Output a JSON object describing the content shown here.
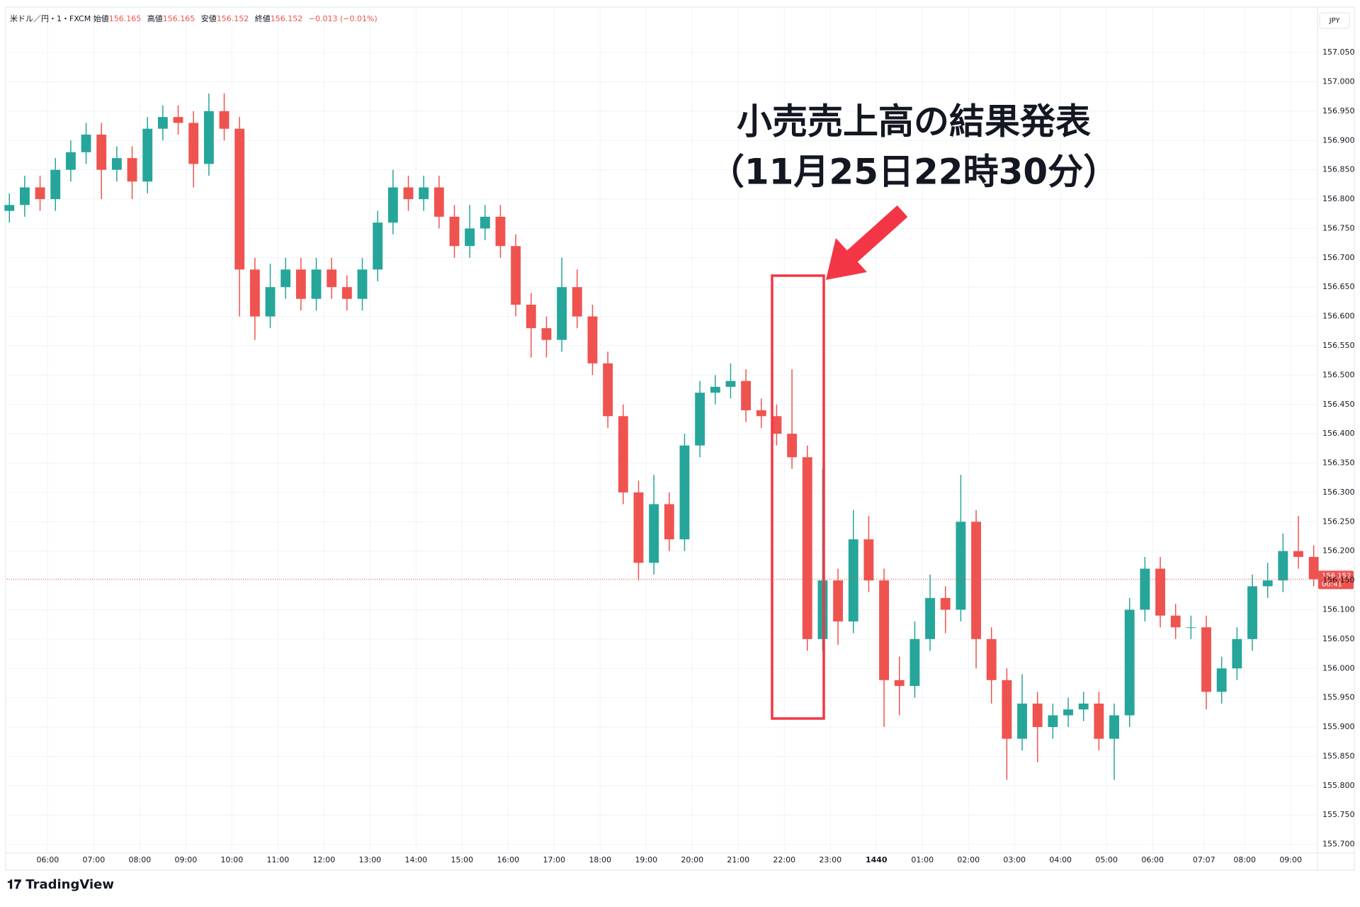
{
  "header": {
    "symbol": "米ドル／円・1・FXCM",
    "open_label": "始値",
    "open": "156.165",
    "high_label": "高値",
    "high": "156.165",
    "low_label": "安値",
    "low": "156.152",
    "close_label": "終値",
    "close": "156.152",
    "change": "−0.013 (−0.01%)"
  },
  "currency": "JPY",
  "countdown": "00:41",
  "logo": "TradingView",
  "chart_data": {
    "type": "candlestick",
    "annotation": [
      "小売売上高の結果発表",
      "（11月25日22時30分）"
    ],
    "up_color": "#26a69a",
    "down_color": "#ef5350",
    "grid": true,
    "xlim": [
      307,
      2014
    ],
    "ylim": [
      157.125,
      155.685
    ],
    "xticks": [
      {
        "value": 360,
        "label": "06:00"
      },
      {
        "value": 420,
        "label": "07:00"
      },
      {
        "value": 480,
        "label": "08:00"
      },
      {
        "value": 540,
        "label": "09:00"
      },
      {
        "value": 600,
        "label": "10:00"
      },
      {
        "value": 660,
        "label": "11:00"
      },
      {
        "value": 720,
        "label": "12:00"
      },
      {
        "value": 780,
        "label": "13:00"
      },
      {
        "value": 840,
        "label": "14:00"
      },
      {
        "value": 900,
        "label": "15:00"
      },
      {
        "value": 960,
        "label": "16:00"
      },
      {
        "value": 1020,
        "label": "17:00"
      },
      {
        "value": 1080,
        "label": "18:00"
      },
      {
        "value": 1140,
        "label": "19:00"
      },
      {
        "value": 1200,
        "label": "20:00"
      },
      {
        "value": 1260,
        "label": "21:00"
      },
      {
        "value": 1320,
        "label": "22:00"
      },
      {
        "value": 1380,
        "label": "23:00"
      },
      1440,
      {
        "value": 1500,
        "label": "01:00"
      },
      {
        "value": 1560,
        "label": "02:00"
      },
      {
        "value": 1620,
        "label": "03:00"
      },
      {
        "value": 1680,
        "label": "04:00"
      },
      {
        "value": 1740,
        "label": "05:00"
      },
      {
        "value": 1800,
        "label": "06:00"
      },
      {
        "value": 1867,
        "label": "07:07"
      },
      {
        "value": 1920,
        "label": "08:00"
      },
      {
        "value": 1980,
        "label": "09:00"
      }
    ],
    "yticks": [
      {
        "value": 155.7,
        "label": "155.700"
      },
      {
        "value": 155.75,
        "label": "155.750"
      },
      {
        "value": 155.8,
        "label": "155.800"
      },
      {
        "value": 155.85,
        "label": "155.850"
      },
      {
        "value": 155.9,
        "label": "155.900"
      },
      {
        "value": 155.95,
        "label": "155.950"
      },
      {
        "value": 156.0,
        "label": "156.000"
      },
      {
        "value": 156.05,
        "label": "156.050"
      },
      {
        "value": 156.1,
        "label": "156.100"
      },
      {
        "value": 156.15,
        "label": "156.150"
      },
      {
        "value": 156.2,
        "label": "156.200"
      },
      {
        "value": 156.25,
        "label": "156.250"
      },
      {
        "value": 156.3,
        "label": "156.300"
      },
      {
        "value": 156.35,
        "label": "156.350"
      },
      {
        "value": 156.4,
        "label": "156.400"
      },
      {
        "value": 156.45,
        "label": "156.450"
      },
      {
        "value": 156.5,
        "label": "156.500"
      },
      {
        "value": 156.55,
        "label": "156.550"
      },
      {
        "value": 156.6,
        "label": "156.600"
      },
      {
        "value": 156.65,
        "label": "156.650"
      },
      {
        "value": 156.7,
        "label": "156.700"
      },
      {
        "value": 156.75,
        "label": "156.750"
      },
      {
        "value": 156.8,
        "label": "156.800"
      },
      {
        "value": 156.85,
        "label": "156.850"
      },
      {
        "value": 156.9,
        "label": "156.900"
      },
      {
        "value": 156.95,
        "label": "156.950"
      },
      {
        "value": 157.0,
        "label": "157.000"
      },
      {
        "value": 157.05,
        "label": "157.050"
      }
    ],
    "x": [
      310,
      330,
      350,
      370,
      390,
      410,
      430,
      450,
      470,
      490,
      510,
      530,
      550,
      570,
      590,
      610,
      630,
      650,
      670,
      690,
      710,
      730,
      750,
      770,
      790,
      810,
      830,
      850,
      870,
      890,
      910,
      930,
      950,
      970,
      990,
      1010,
      1030,
      1050,
      1070,
      1090,
      1110,
      1130,
      1150,
      1170,
      1190,
      1210,
      1230,
      1250,
      1270,
      1290,
      1310,
      1330,
      1350,
      1370,
      1390,
      1410,
      1430,
      1450,
      1470,
      1490,
      1510,
      1530,
      1550,
      1570,
      1590,
      1610,
      1630,
      1650,
      1670,
      1690,
      1710,
      1730,
      1750,
      1770,
      1790,
      1810,
      1830,
      1850,
      1870,
      1890,
      1910,
      1930,
      1950,
      1970,
      1990,
      2010
    ],
    "open": [
      156.78,
      156.79,
      156.82,
      156.8,
      156.85,
      156.88,
      156.91,
      156.85,
      156.87,
      156.83,
      156.92,
      156.94,
      156.93,
      156.86,
      156.95,
      156.92,
      156.68,
      156.6,
      156.65,
      156.68,
      156.63,
      156.68,
      156.65,
      156.63,
      156.68,
      156.76,
      156.82,
      156.8,
      156.82,
      156.77,
      156.72,
      156.75,
      156.77,
      156.72,
      156.62,
      156.58,
      156.56,
      156.65,
      156.6,
      156.52,
      156.43,
      156.3,
      156.18,
      156.28,
      156.22,
      156.38,
      156.47,
      156.48,
      156.49,
      156.44,
      156.43,
      156.4,
      156.36,
      156.05,
      156.15,
      156.08,
      156.22,
      156.15,
      155.98,
      155.97,
      156.05,
      156.12,
      156.1,
      156.25,
      156.05,
      155.98,
      155.88,
      155.94,
      155.9,
      155.92,
      155.93,
      155.94,
      155.88,
      155.92,
      156.1,
      156.17,
      156.09,
      156.07,
      156.07,
      155.96,
      156.0,
      156.05,
      156.14,
      156.15,
      156.2,
      156.19
    ],
    "high": [
      156.81,
      156.84,
      156.84,
      156.87,
      156.9,
      156.93,
      156.93,
      156.89,
      156.89,
      156.94,
      156.96,
      156.96,
      156.95,
      156.98,
      156.98,
      156.94,
      156.7,
      156.69,
      156.7,
      156.7,
      156.7,
      156.7,
      156.67,
      156.7,
      156.78,
      156.85,
      156.84,
      156.84,
      156.84,
      156.79,
      156.79,
      156.79,
      156.79,
      156.74,
      156.64,
      156.6,
      156.7,
      156.68,
      156.62,
      156.54,
      156.45,
      156.32,
      156.33,
      156.3,
      156.4,
      156.49,
      156.5,
      156.52,
      156.51,
      156.46,
      156.45,
      156.51,
      156.38,
      156.34,
      156.17,
      156.27,
      156.26,
      156.17,
      156.02,
      156.08,
      156.16,
      156.14,
      156.33,
      156.27,
      156.07,
      156.0,
      155.99,
      155.96,
      155.94,
      155.95,
      155.96,
      155.96,
      155.94,
      156.12,
      156.19,
      156.19,
      156.11,
      156.09,
      156.09,
      156.02,
      156.07,
      156.16,
      156.18,
      156.23,
      156.26,
      156.21
    ],
    "low": [
      156.76,
      156.77,
      156.78,
      156.78,
      156.83,
      156.86,
      156.8,
      156.83,
      156.8,
      156.81,
      156.9,
      156.91,
      156.82,
      156.84,
      156.9,
      156.6,
      156.56,
      156.58,
      156.63,
      156.61,
      156.61,
      156.63,
      156.61,
      156.61,
      156.66,
      156.74,
      156.78,
      156.78,
      156.75,
      156.7,
      156.7,
      156.73,
      156.7,
      156.6,
      156.53,
      156.53,
      156.54,
      156.58,
      156.5,
      156.41,
      156.28,
      156.15,
      156.16,
      156.2,
      156.2,
      156.36,
      156.45,
      156.46,
      156.42,
      156.41,
      156.38,
      156.34,
      156.03,
      156.03,
      156.04,
      156.06,
      156.13,
      155.9,
      155.92,
      155.95,
      156.03,
      156.06,
      156.08,
      156.0,
      155.94,
      155.81,
      155.86,
      155.84,
      155.88,
      155.9,
      155.91,
      155.86,
      155.81,
      155.9,
      156.08,
      156.07,
      156.05,
      156.05,
      155.93,
      155.94,
      155.98,
      156.03,
      156.12,
      156.13,
      156.17,
      156.14
    ],
    "close": [
      156.79,
      156.82,
      156.8,
      156.85,
      156.88,
      156.91,
      156.85,
      156.87,
      156.83,
      156.92,
      156.94,
      156.93,
      156.86,
      156.95,
      156.92,
      156.68,
      156.6,
      156.65,
      156.68,
      156.63,
      156.68,
      156.65,
      156.63,
      156.68,
      156.76,
      156.82,
      156.8,
      156.82,
      156.77,
      156.72,
      156.75,
      156.77,
      156.72,
      156.62,
      156.58,
      156.56,
      156.65,
      156.6,
      156.52,
      156.43,
      156.3,
      156.18,
      156.28,
      156.22,
      156.38,
      156.47,
      156.48,
      156.49,
      156.44,
      156.43,
      156.4,
      156.36,
      156.05,
      156.15,
      156.08,
      156.22,
      156.15,
      155.98,
      155.97,
      156.05,
      156.12,
      156.1,
      156.25,
      156.05,
      155.98,
      155.88,
      155.94,
      155.9,
      155.92,
      155.93,
      155.94,
      155.88,
      155.92,
      156.1,
      156.17,
      156.09,
      156.07,
      156.07,
      155.96,
      156.0,
      156.05,
      156.14,
      156.15,
      156.2,
      156.19,
      156.152
    ]
  }
}
